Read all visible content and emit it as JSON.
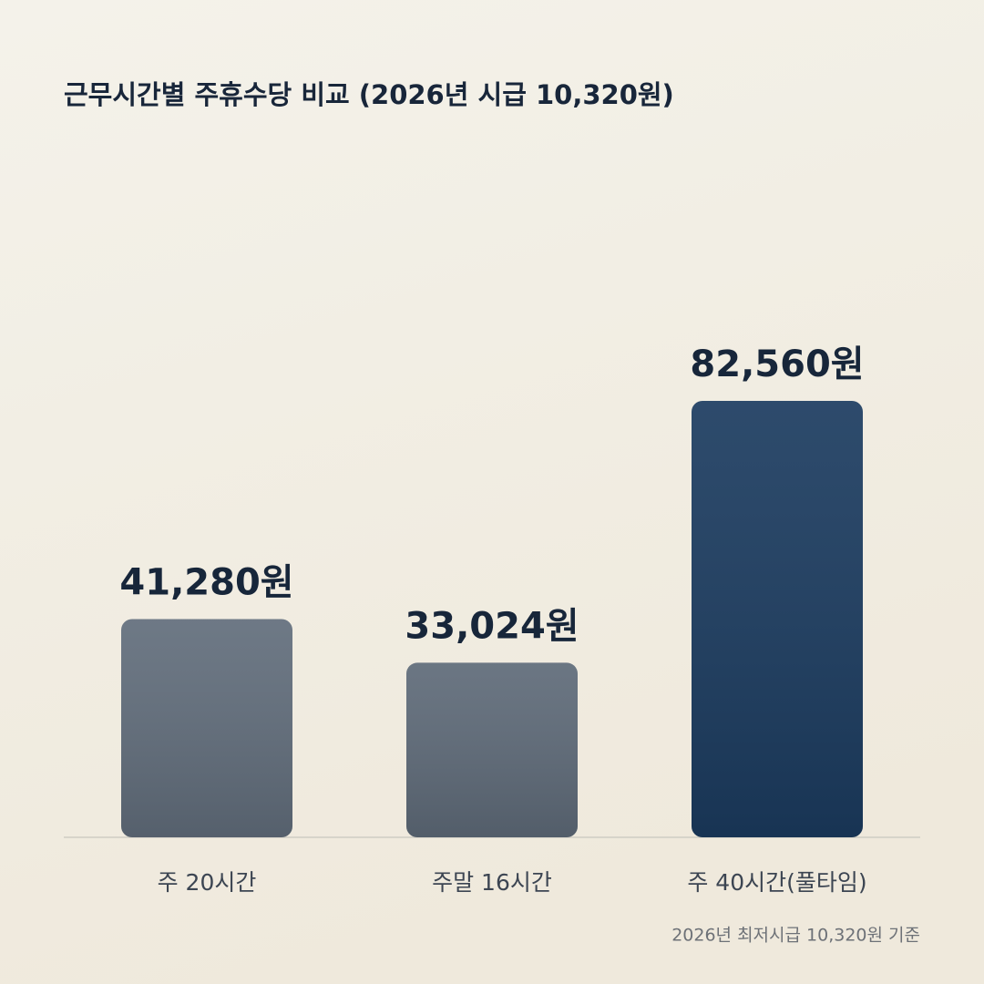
{
  "chart_data": {
    "type": "bar",
    "title": "근무시간별 주휴수당 비교 (2026년 시급 10,320원)",
    "categories": [
      "주 20시간",
      "주말 16시간",
      "주 40시간(풀타임)"
    ],
    "values": [
      41280,
      33024,
      82560
    ],
    "value_labels": [
      "41,280원",
      "33,024원",
      "82,560원"
    ],
    "colors": [
      "#616d7b",
      "#5e6a78",
      "#1b3b5f"
    ],
    "note": "2026년 최저시급 10,320원 기준"
  }
}
